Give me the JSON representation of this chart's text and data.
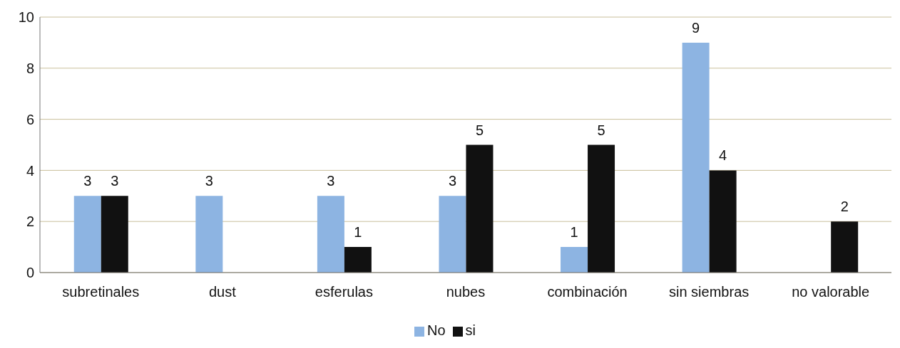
{
  "chart_data": {
    "type": "bar",
    "categories": [
      "subretinales",
      "dust",
      "esferulas",
      "nubes",
      "combinación",
      "sin siembras",
      "no valorable"
    ],
    "series": [
      {
        "name": "No",
        "color": "#8db4e2",
        "values": [
          3,
          3,
          3,
          3,
          1,
          9,
          null
        ]
      },
      {
        "name": "si",
        "color": "#111111",
        "values": [
          3,
          null,
          1,
          5,
          5,
          4,
          2
        ]
      }
    ],
    "ylim": [
      0,
      10
    ],
    "yticks": [
      0,
      2,
      4,
      6,
      8,
      10
    ],
    "grid": "y",
    "legend": "bottom",
    "data_labels": true
  }
}
